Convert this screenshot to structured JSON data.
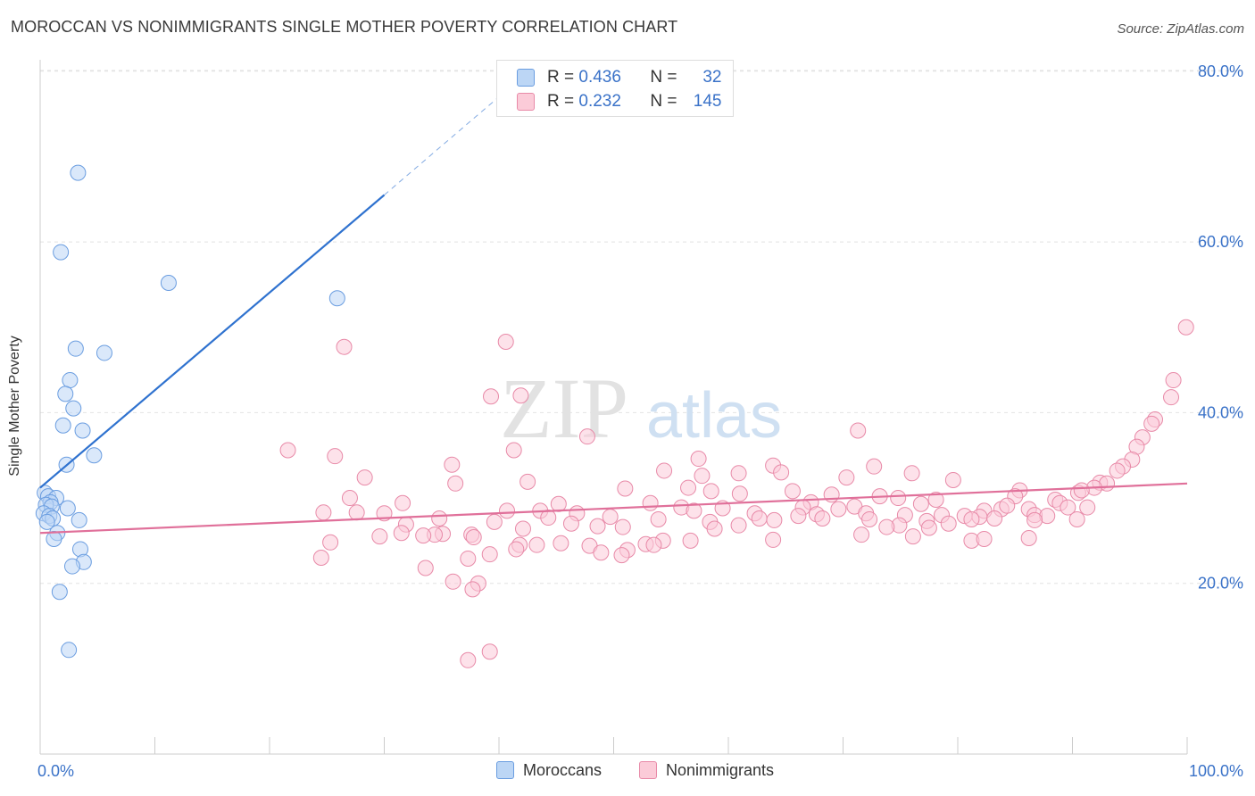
{
  "title": "MOROCCAN VS NONIMMIGRANTS SINGLE MOTHER POVERTY CORRELATION CHART",
  "source": "Source: ZipAtlas.com",
  "watermark": {
    "zip": "ZIP",
    "atlas": "atlas"
  },
  "legend": {
    "rows": [
      {
        "r_label": "R =",
        "r_value": "0.436",
        "n_label": "N =",
        "n_value": "32",
        "color": "#a9c9f0",
        "border": "#6a9de0"
      },
      {
        "r_label": "R =",
        "r_value": "0.232",
        "n_label": "N =",
        "n_value": "145",
        "color": "#f7b8cb",
        "border": "#e88aa8"
      }
    ]
  },
  "bottom_legend": [
    {
      "label": "Moroccans",
      "color": "#bcd6f5",
      "border": "#6a9de0"
    },
    {
      "label": "Nonimmigrants",
      "color": "#fbcbd8",
      "border": "#e88aa8"
    }
  ],
  "chart_data": {
    "type": "scatter",
    "title": "MOROCCAN VS NONIMMIGRANTS SINGLE MOTHER POVERTY CORRELATION CHART",
    "xlabel": "",
    "ylabel": "Single Mother Poverty",
    "xlim": [
      0,
      100
    ],
    "ylim": [
      0,
      82
    ],
    "x_tick_labels": [
      "0.0%",
      "100.0%"
    ],
    "y_ticks": [
      20,
      40,
      60,
      80
    ],
    "y_tick_labels": [
      "20.0%",
      "40.0%",
      "60.0%",
      "80.0%"
    ],
    "grid": true,
    "series": [
      {
        "name": "Moroccans",
        "color": "#6a9de0",
        "fill": "#bcd6f5",
        "trend": {
          "x0": 0,
          "y0": 31.2,
          "x1": 30,
          "y1": 65.5,
          "dash_to_x": 42,
          "dash_to_y": 79.3,
          "color": "#2f72cf"
        },
        "points": [
          [
            3.3,
            68.1
          ],
          [
            1.8,
            58.8
          ],
          [
            11.2,
            55.2
          ],
          [
            25.9,
            53.4
          ],
          [
            3.1,
            47.5
          ],
          [
            5.6,
            47.0
          ],
          [
            2.6,
            43.8
          ],
          [
            2.2,
            42.2
          ],
          [
            2.9,
            40.5
          ],
          [
            2.0,
            38.5
          ],
          [
            3.7,
            37.9
          ],
          [
            4.7,
            35.0
          ],
          [
            2.3,
            33.9
          ],
          [
            0.4,
            30.6
          ],
          [
            0.7,
            30.2
          ],
          [
            1.4,
            30.0
          ],
          [
            0.9,
            29.5
          ],
          [
            0.5,
            29.2
          ],
          [
            1.0,
            29.0
          ],
          [
            2.4,
            28.8
          ],
          [
            0.3,
            28.2
          ],
          [
            0.8,
            27.9
          ],
          [
            1.1,
            27.6
          ],
          [
            3.4,
            27.4
          ],
          [
            0.6,
            27.2
          ],
          [
            1.5,
            25.9
          ],
          [
            1.2,
            25.2
          ],
          [
            3.5,
            24.0
          ],
          [
            3.8,
            22.5
          ],
          [
            2.8,
            22.0
          ],
          [
            1.7,
            19.0
          ],
          [
            2.5,
            12.2
          ]
        ]
      },
      {
        "name": "Nonimmigrants",
        "color": "#e88aa8",
        "fill": "#fbcbd8",
        "trend": {
          "x0": 0,
          "y0": 25.9,
          "x1": 100,
          "y1": 31.7,
          "color": "#e0709a"
        },
        "points": [
          [
            99.9,
            50.0
          ],
          [
            26.5,
            47.7
          ],
          [
            40.6,
            48.3
          ],
          [
            41.9,
            42.0
          ],
          [
            39.3,
            41.9
          ],
          [
            98.8,
            43.8
          ],
          [
            98.6,
            41.8
          ],
          [
            97.2,
            39.2
          ],
          [
            96.9,
            38.7
          ],
          [
            47.7,
            37.2
          ],
          [
            71.3,
            37.9
          ],
          [
            96.1,
            37.1
          ],
          [
            95.6,
            36.0
          ],
          [
            95.2,
            34.5
          ],
          [
            21.6,
            35.6
          ],
          [
            25.7,
            34.9
          ],
          [
            41.3,
            35.6
          ],
          [
            57.4,
            34.6
          ],
          [
            94.4,
            33.7
          ],
          [
            35.9,
            33.9
          ],
          [
            63.9,
            33.8
          ],
          [
            72.7,
            33.7
          ],
          [
            93.9,
            33.2
          ],
          [
            54.4,
            33.2
          ],
          [
            60.9,
            32.9
          ],
          [
            64.6,
            33.0
          ],
          [
            57.7,
            32.6
          ],
          [
            76.0,
            32.9
          ],
          [
            28.3,
            32.4
          ],
          [
            70.3,
            32.4
          ],
          [
            79.6,
            32.1
          ],
          [
            36.2,
            31.7
          ],
          [
            42.5,
            31.9
          ],
          [
            56.5,
            31.2
          ],
          [
            51.0,
            31.1
          ],
          [
            58.5,
            30.8
          ],
          [
            92.4,
            31.8
          ],
          [
            93.0,
            31.7
          ],
          [
            91.9,
            31.2
          ],
          [
            65.6,
            30.8
          ],
          [
            61.0,
            30.5
          ],
          [
            69.0,
            30.4
          ],
          [
            85.4,
            30.9
          ],
          [
            27.0,
            30.0
          ],
          [
            90.5,
            30.6
          ],
          [
            90.8,
            30.9
          ],
          [
            73.2,
            30.2
          ],
          [
            74.8,
            30.0
          ],
          [
            85.0,
            30.2
          ],
          [
            31.6,
            29.4
          ],
          [
            67.2,
            29.5
          ],
          [
            78.1,
            29.8
          ],
          [
            88.5,
            29.8
          ],
          [
            45.2,
            29.3
          ],
          [
            53.2,
            29.4
          ],
          [
            59.5,
            28.8
          ],
          [
            66.5,
            28.9
          ],
          [
            71.0,
            29.0
          ],
          [
            76.8,
            29.3
          ],
          [
            82.3,
            28.5
          ],
          [
            88.9,
            29.4
          ],
          [
            27.6,
            28.3
          ],
          [
            43.6,
            28.5
          ],
          [
            55.9,
            28.9
          ],
          [
            69.6,
            28.7
          ],
          [
            83.8,
            28.7
          ],
          [
            84.3,
            29.1
          ],
          [
            86.2,
            28.7
          ],
          [
            89.6,
            28.9
          ],
          [
            91.3,
            28.9
          ],
          [
            24.7,
            28.3
          ],
          [
            30.0,
            28.2
          ],
          [
            40.7,
            28.5
          ],
          [
            46.8,
            28.2
          ],
          [
            57.0,
            28.5
          ],
          [
            62.3,
            28.2
          ],
          [
            66.1,
            27.9
          ],
          [
            67.7,
            28.1
          ],
          [
            72.0,
            28.2
          ],
          [
            75.4,
            28.0
          ],
          [
            78.6,
            28.0
          ],
          [
            80.6,
            27.9
          ],
          [
            81.9,
            27.8
          ],
          [
            86.7,
            28.0
          ],
          [
            87.8,
            27.9
          ],
          [
            34.8,
            27.6
          ],
          [
            44.3,
            27.7
          ],
          [
            49.7,
            27.8
          ],
          [
            53.9,
            27.5
          ],
          [
            62.7,
            27.6
          ],
          [
            64.0,
            27.4
          ],
          [
            68.2,
            27.6
          ],
          [
            72.3,
            27.5
          ],
          [
            77.3,
            27.3
          ],
          [
            81.2,
            27.5
          ],
          [
            83.2,
            27.6
          ],
          [
            86.7,
            27.4
          ],
          [
            90.4,
            27.5
          ],
          [
            39.6,
            27.2
          ],
          [
            46.3,
            27.0
          ],
          [
            58.4,
            27.2
          ],
          [
            60.9,
            26.8
          ],
          [
            74.9,
            26.8
          ],
          [
            79.2,
            27.0
          ],
          [
            31.9,
            26.9
          ],
          [
            50.8,
            26.6
          ],
          [
            58.8,
            26.4
          ],
          [
            73.8,
            26.6
          ],
          [
            77.5,
            26.5
          ],
          [
            42.1,
            26.4
          ],
          [
            48.6,
            26.7
          ],
          [
            35.1,
            25.8
          ],
          [
            37.6,
            25.7
          ],
          [
            34.4,
            25.7
          ],
          [
            29.6,
            25.5
          ],
          [
            33.4,
            25.6
          ],
          [
            56.7,
            25.0
          ],
          [
            71.6,
            25.7
          ],
          [
            86.2,
            25.3
          ],
          [
            25.3,
            24.8
          ],
          [
            41.8,
            24.5
          ],
          [
            54.3,
            25.0
          ],
          [
            63.9,
            25.1
          ],
          [
            76.1,
            25.5
          ],
          [
            81.2,
            25.0
          ],
          [
            82.3,
            25.2
          ],
          [
            37.8,
            25.4
          ],
          [
            45.4,
            24.7
          ],
          [
            47.9,
            24.4
          ],
          [
            52.8,
            24.6
          ],
          [
            51.2,
            23.9
          ],
          [
            43.3,
            24.5
          ],
          [
            41.5,
            24.0
          ],
          [
            39.2,
            23.4
          ],
          [
            48.9,
            23.6
          ],
          [
            50.7,
            23.3
          ],
          [
            37.3,
            22.9
          ],
          [
            24.5,
            23.0
          ],
          [
            31.5,
            25.9
          ],
          [
            33.6,
            21.8
          ],
          [
            53.5,
            24.5
          ],
          [
            36.0,
            20.2
          ],
          [
            38.2,
            20.0
          ],
          [
            37.7,
            19.3
          ],
          [
            39.2,
            12.0
          ],
          [
            37.3,
            11.0
          ]
        ]
      }
    ]
  }
}
